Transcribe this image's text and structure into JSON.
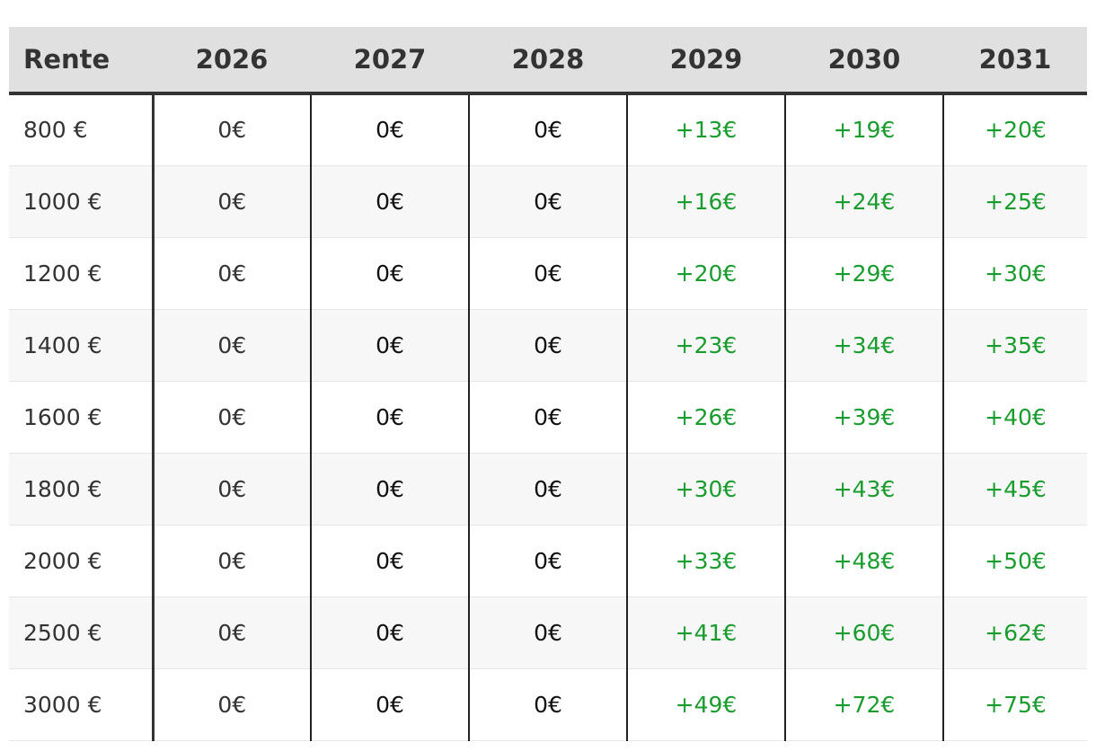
{
  "table": {
    "headers": [
      "Rente",
      "2026",
      "2027",
      "2028",
      "2029",
      "2030",
      "2031"
    ],
    "rows": [
      {
        "rente": "800 €",
        "values": [
          "0€",
          "0€",
          "0€",
          "+13€",
          "+19€",
          "+20€"
        ]
      },
      {
        "rente": "1000 €",
        "values": [
          "0€",
          "0€",
          "0€",
          "+16€",
          "+24€",
          "+25€"
        ]
      },
      {
        "rente": "1200 €",
        "values": [
          "0€",
          "0€",
          "0€",
          "+20€",
          "+29€",
          "+30€"
        ]
      },
      {
        "rente": "1400 €",
        "values": [
          "0€",
          "0€",
          "0€",
          "+23€",
          "+34€",
          "+35€"
        ]
      },
      {
        "rente": "1600 €",
        "values": [
          "0€",
          "0€",
          "0€",
          "+26€",
          "+39€",
          "+40€"
        ]
      },
      {
        "rente": "1800 €",
        "values": [
          "0€",
          "0€",
          "0€",
          "+30€",
          "+43€",
          "+45€"
        ]
      },
      {
        "rente": "2000 €",
        "values": [
          "0€",
          "0€",
          "0€",
          "+33€",
          "+48€",
          "+50€"
        ]
      },
      {
        "rente": "2500 €",
        "values": [
          "0€",
          "0€",
          "0€",
          "+41€",
          "+60€",
          "+62€"
        ]
      },
      {
        "rente": "3000 €",
        "values": [
          "0€",
          "0€",
          "0€",
          "+49€",
          "+72€",
          "+75€"
        ]
      }
    ]
  },
  "colors": {
    "header_bg": "#e0e0e0",
    "positive": "#1a9c2e",
    "text": "#333333",
    "stripe": "#f7f7f7"
  }
}
